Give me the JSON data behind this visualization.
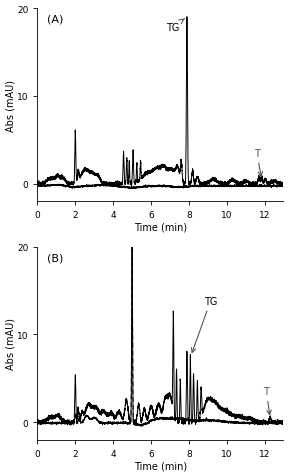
{
  "xlim": [
    0,
    13
  ],
  "ylim_A": [
    -2,
    20
  ],
  "ylim_B": [
    -2,
    20
  ],
  "xticks": [
    0,
    2,
    4,
    6,
    8,
    10,
    12
  ],
  "yticks_A": [
    0,
    10,
    20
  ],
  "yticks_B": [
    0,
    10,
    20
  ],
  "xlabel": "Time (min)",
  "ylabel": "Abs (mAU)",
  "label_A": "(A)",
  "label_B": "(B)",
  "TG_label": "TG",
  "T_label": "T",
  "bg_color": "#ffffff",
  "line_color": "#000000",
  "dashed_color": "#000000",
  "solid_lw": 0.7,
  "dashed_lw": 0.7,
  "figsize": [
    2.89,
    4.77
  ],
  "dpi": 100,
  "annotation_color": "#555555",
  "annotation_fontsize": 7
}
